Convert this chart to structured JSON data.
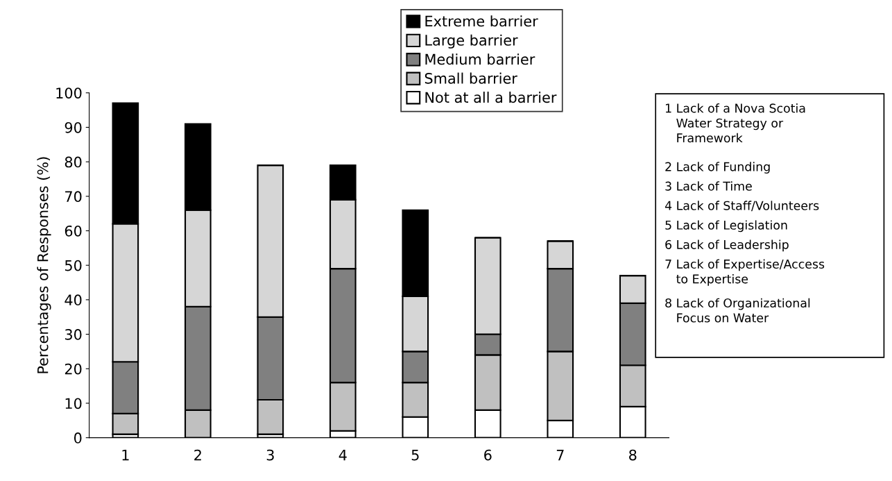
{
  "chart_data": {
    "type": "bar",
    "stacked": true,
    "ylabel": "Percentages of Responses (%)",
    "categories": [
      "1",
      "2",
      "3",
      "4",
      "5",
      "6",
      "7",
      "8"
    ],
    "series": [
      {
        "name": "Not at all a barrier",
        "color": "#ffffff",
        "values": [
          1,
          0,
          1,
          2,
          6,
          8,
          5,
          9
        ]
      },
      {
        "name": "Small barrier",
        "color": "#c0c0c0",
        "values": [
          6,
          8,
          10,
          14,
          10,
          16,
          20,
          12
        ]
      },
      {
        "name": "Medium barrier",
        "color": "#808080",
        "values": [
          15,
          30,
          24,
          33,
          9,
          6,
          24,
          18
        ]
      },
      {
        "name": "Large barrier",
        "color": "#d6d6d6",
        "values": [
          40,
          28,
          44,
          20,
          16,
          28,
          8,
          8
        ]
      },
      {
        "name": "Extreme barrier",
        "color": "#000000",
        "values": [
          35,
          25,
          0,
          10,
          25,
          0,
          0,
          0
        ]
      }
    ],
    "ylim": [
      0,
      100
    ],
    "yticks": [
      0,
      10,
      20,
      30,
      40,
      50,
      60,
      70,
      80,
      90,
      100
    ],
    "grid": false,
    "legend": "top",
    "annotations": [
      "1 Lack of a Nova Scotia\n   Water Strategy or\n   Framework",
      "2 Lack of Funding",
      "3 Lack of Time",
      "4 Lack of Staff/Volunteers",
      "5 Lack of Legislation",
      "6 Lack of Leadership",
      "7 Lack of Expertise/Access\n   to Expertise",
      "8 Lack of Organizational\n   Focus on Water"
    ]
  }
}
